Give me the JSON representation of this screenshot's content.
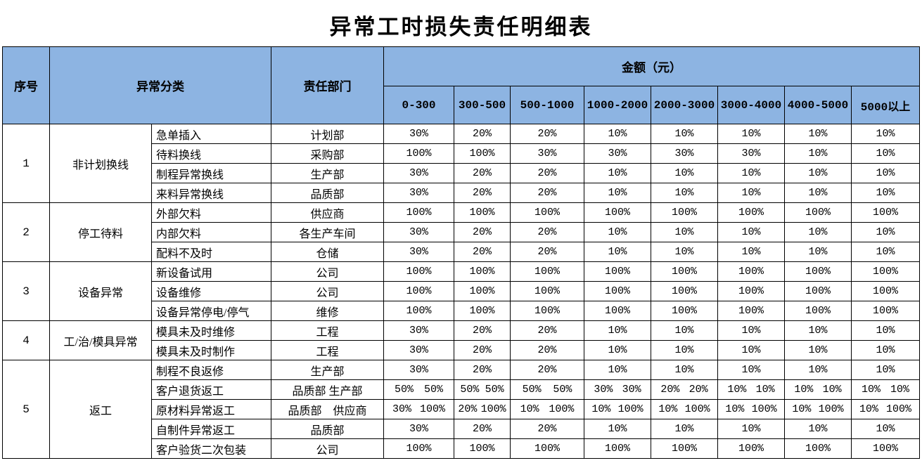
{
  "title": "异常工时损失责任明细表",
  "colors": {
    "header_bg": "#8DB4E2",
    "border": "#000000",
    "background": "#FFFFFF"
  },
  "table": {
    "headers": {
      "index": "序号",
      "category": "异常分类",
      "department": "责任部门",
      "amount_group": "金额（元）",
      "ranges": [
        "0-300",
        "300-500",
        "500-1000",
        "1000-2000",
        "2000-3000",
        "3000-4000",
        "4000-5000",
        "5000以上"
      ]
    },
    "groups": [
      {
        "no": "1",
        "category": "非计划换线",
        "rows": [
          {
            "item": "急单插入",
            "department": "计划部",
            "values": [
              "30%",
              "20%",
              "20%",
              "10%",
              "10%",
              "10%",
              "10%",
              "10%"
            ]
          },
          {
            "item": "待料换线",
            "department": "采购部",
            "values": [
              "100%",
              "100%",
              "30%",
              "30%",
              "30%",
              "30%",
              "10%",
              "10%"
            ]
          },
          {
            "item": "制程异常换线",
            "department": "生产部",
            "values": [
              "30%",
              "20%",
              "20%",
              "10%",
              "10%",
              "10%",
              "10%",
              "10%"
            ]
          },
          {
            "item": "来料异常换线",
            "department": "品质部",
            "values": [
              "30%",
              "20%",
              "20%",
              "10%",
              "10%",
              "10%",
              "10%",
              "10%"
            ]
          }
        ]
      },
      {
        "no": "2",
        "category": "停工待料",
        "rows": [
          {
            "item": "外部欠料",
            "department": "供应商",
            "values": [
              "100%",
              "100%",
              "100%",
              "100%",
              "100%",
              "100%",
              "100%",
              "100%"
            ]
          },
          {
            "item": "内部欠料",
            "department": "各生产车间",
            "values": [
              "30%",
              "20%",
              "20%",
              "10%",
              "10%",
              "10%",
              "10%",
              "10%"
            ]
          },
          {
            "item": "配料不及时",
            "department": "仓储",
            "values": [
              "30%",
              "20%",
              "20%",
              "10%",
              "10%",
              "10%",
              "10%",
              "10%"
            ]
          }
        ]
      },
      {
        "no": "3",
        "category": "设备异常",
        "rows": [
          {
            "item": "新设备试用",
            "department": "公司",
            "values": [
              "100%",
              "100%",
              "100%",
              "100%",
              "100%",
              "100%",
              "100%",
              "100%"
            ]
          },
          {
            "item": "设备维修",
            "department": "公司",
            "values": [
              "100%",
              "100%",
              "100%",
              "100%",
              "100%",
              "100%",
              "100%",
              "100%"
            ]
          },
          {
            "item": "设备异常停电/停气",
            "department": "维修",
            "values": [
              "100%",
              "100%",
              "100%",
              "100%",
              "100%",
              "100%",
              "100%",
              "100%"
            ]
          }
        ]
      },
      {
        "no": "4",
        "category": "工/治/模具异常",
        "rows": [
          {
            "item": "模具未及时维修",
            "department": "工程",
            "values": [
              "30%",
              "20%",
              "20%",
              "10%",
              "10%",
              "10%",
              "10%",
              "10%"
            ]
          },
          {
            "item": "模具未及时制作",
            "department": "工程",
            "values": [
              "30%",
              "20%",
              "20%",
              "10%",
              "10%",
              "10%",
              "10%",
              "10%"
            ]
          }
        ]
      },
      {
        "no": "5",
        "category": "返工",
        "rows": [
          {
            "item": "制程不良返修",
            "department": "生产部",
            "values": [
              "30%",
              "20%",
              "20%",
              "10%",
              "10%",
              "10%",
              "10%",
              "10%"
            ]
          },
          {
            "item": "客户退货返工",
            "department": "品质部 生产部",
            "values": [
              [
                "50%",
                "50%"
              ],
              [
                "50%",
                "50%"
              ],
              [
                "50%",
                "50%"
              ],
              [
                "30%",
                "30%"
              ],
              [
                "20%",
                "20%"
              ],
              [
                "10%",
                "10%"
              ],
              [
                "10%",
                "10%"
              ],
              [
                "10%",
                "10%"
              ]
            ]
          },
          {
            "item": "原材料异常返工",
            "department": "品质部　供应商",
            "values": [
              [
                "30%",
                "100%"
              ],
              [
                "20%",
                "100%"
              ],
              [
                "10%",
                "100%"
              ],
              [
                "10%",
                "100%"
              ],
              [
                "10%",
                "100%"
              ],
              [
                "10%",
                "100%"
              ],
              [
                "10%",
                "100%"
              ],
              [
                "10%",
                "100%"
              ]
            ]
          },
          {
            "item": "自制件异常返工",
            "department": "品质部",
            "values": [
              "30%",
              "20%",
              "20%",
              "10%",
              "10%",
              "10%",
              "10%",
              "10%"
            ]
          },
          {
            "item": "客户验货二次包装",
            "department": "公司",
            "values": [
              "100%",
              "100%",
              "100%",
              "100%",
              "100%",
              "100%",
              "100%",
              "100%"
            ]
          }
        ]
      }
    ]
  }
}
